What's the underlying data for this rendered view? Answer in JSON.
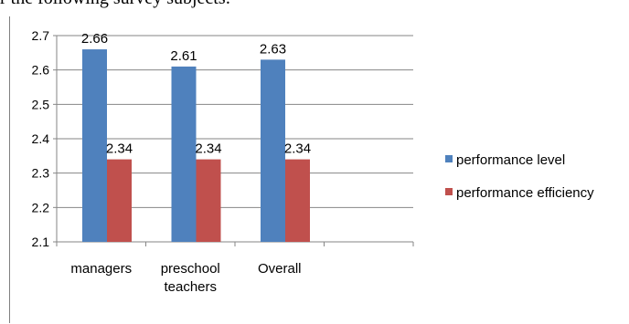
{
  "caption": "r the following survey subjects:",
  "chart_data": {
    "type": "bar",
    "categories": [
      [
        "managers"
      ],
      [
        "preschool",
        "teachers"
      ],
      [
        "Overall"
      ],
      [
        ""
      ]
    ],
    "series": [
      {
        "name": "performance level",
        "color": "#4f81bd",
        "values": [
          2.66,
          2.61,
          2.63,
          null
        ],
        "labels": [
          "2.66",
          "2.61",
          "2.63",
          ""
        ]
      },
      {
        "name": "performance efficiency",
        "color": "#c0504d",
        "values": [
          2.34,
          2.34,
          2.34,
          null
        ],
        "labels": [
          "2.34",
          "2.34",
          "2.34",
          ""
        ]
      }
    ],
    "ylim": [
      2.1,
      2.7
    ],
    "yticks": [
      "2.1",
      "2.2",
      "2.3",
      "2.4",
      "2.5",
      "2.6",
      "2.7"
    ],
    "grid": true,
    "legend": "right",
    "title": "",
    "xlabel": "",
    "ylabel": ""
  }
}
